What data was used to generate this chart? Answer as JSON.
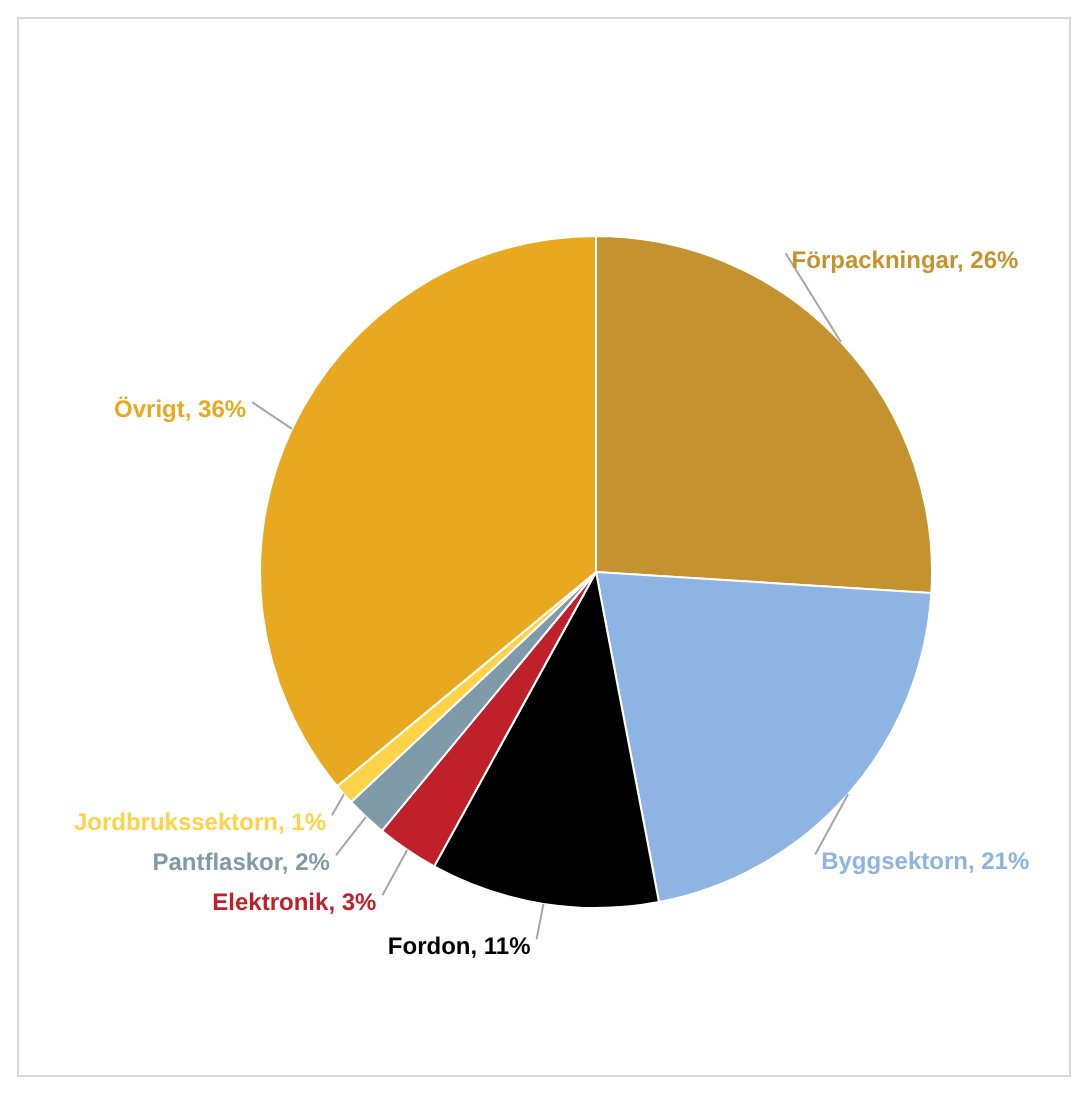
{
  "chart_data": {
    "type": "pie",
    "categories": [
      "Förpackningar",
      "Byggsektorn",
      "Fordon",
      "Elektronik",
      "Pantflaskor",
      "Jordbrukssektorn",
      "Övrigt"
    ],
    "values": [
      26,
      21,
      11,
      3,
      2,
      1,
      36
    ],
    "colors": [
      "#c4922e",
      "#8db4e2",
      "#000000",
      "#c0202a",
      "#7f9aa8",
      "#ffd347",
      "#e8a920"
    ],
    "value_labels": [
      "26%",
      "21%",
      "11%",
      "3%",
      "2%",
      "1%",
      "36%"
    ]
  }
}
